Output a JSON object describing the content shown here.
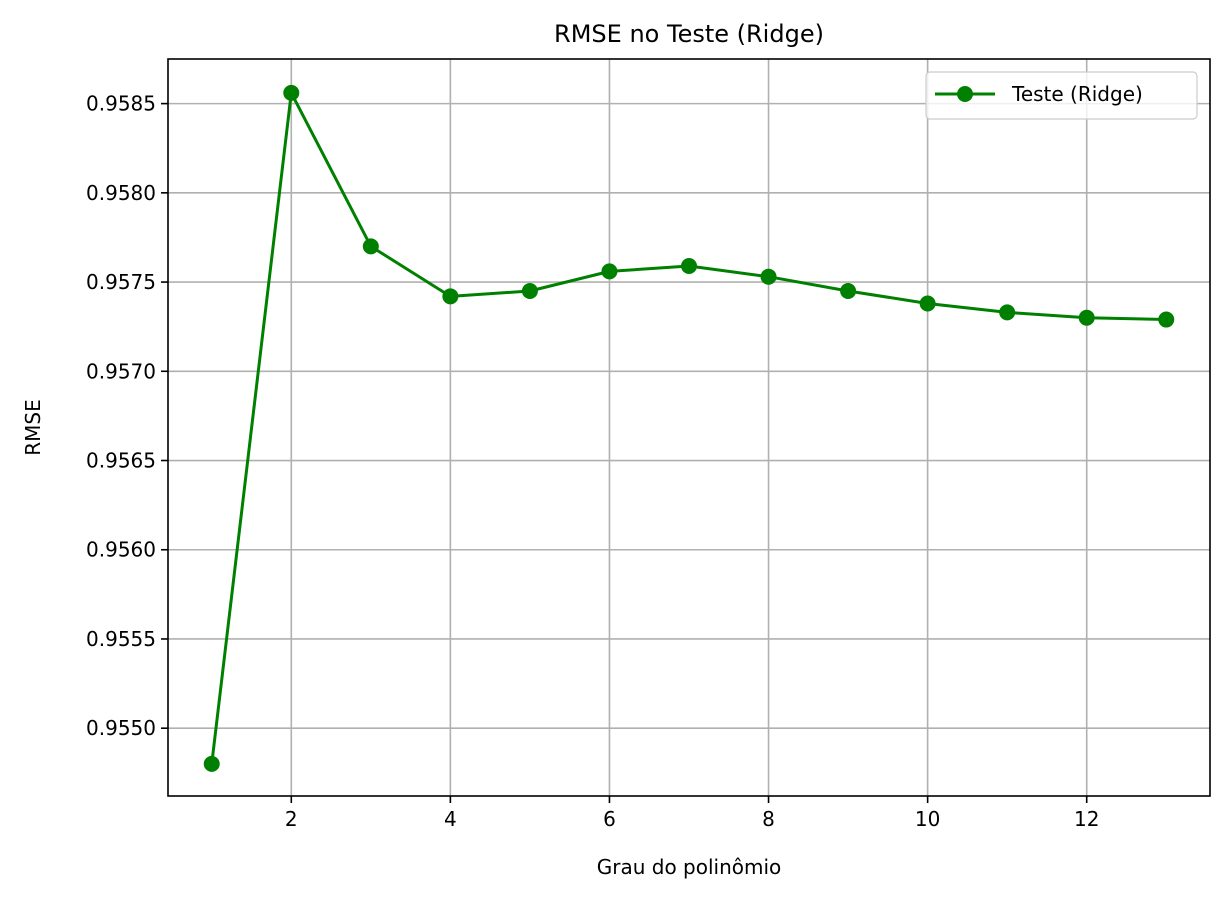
{
  "chart_data": {
    "type": "line",
    "title": "RMSE no Teste (Ridge)",
    "xlabel": "Grau do polinômio",
    "ylabel": "RMSE",
    "xlim": [
      0.45,
      13.55
    ],
    "ylim": [
      0.95462,
      0.95875
    ],
    "xticks": [
      2,
      4,
      6,
      8,
      10,
      12
    ],
    "xtick_labels": [
      "2",
      "4",
      "6",
      "8",
      "10",
      "12"
    ],
    "yticks": [
      0.955,
      0.9555,
      0.956,
      0.9565,
      0.957,
      0.9575,
      0.958,
      0.9585
    ],
    "ytick_labels": [
      "0.9550",
      "0.9555",
      "0.9560",
      "0.9565",
      "0.9570",
      "0.9575",
      "0.9580",
      "0.9585"
    ],
    "grid": true,
    "legend_position": "top-right",
    "series": [
      {
        "name": "Teste (Ridge)",
        "color": "#008000",
        "marker": "circle",
        "x": [
          1,
          2,
          3,
          4,
          5,
          6,
          7,
          8,
          9,
          10,
          11,
          12,
          13
        ],
        "y": [
          0.9548,
          0.95856,
          0.9577,
          0.95742,
          0.95745,
          0.95756,
          0.95759,
          0.95753,
          0.95745,
          0.95738,
          0.95733,
          0.9573,
          0.95729
        ]
      }
    ]
  }
}
